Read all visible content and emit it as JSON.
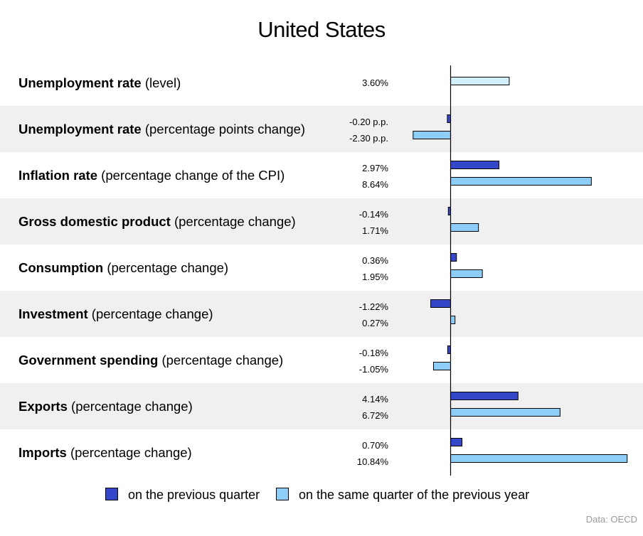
{
  "title": "United States",
  "source": "Data: OECD",
  "legend": {
    "quarter": "on the previous quarter",
    "year": "on the same quarter of the previous year"
  },
  "colors": {
    "quarter": "#3447c9",
    "year": "#8ecdf7",
    "level": "#d2eefb",
    "shade": "#f0f0f0"
  },
  "chart_data": {
    "type": "bar",
    "orientation": "horizontal",
    "title": "United States",
    "categories": [
      "Unemployment rate (level)",
      "Unemployment rate (percentage points change)",
      "Inflation rate (percentage change of the CPI)",
      "Gross domestic product (percentage change)",
      "Consumption (percentage change)",
      "Investment (percentage change)",
      "Government spending (percentage change)",
      "Exports (percentage change)",
      "Imports (percentage change)"
    ],
    "rows": [
      {
        "bold": "Unemployment rate",
        "rest": " (level)",
        "level": 3.6,
        "level_label": "3.60%"
      },
      {
        "bold": "Unemployment rate",
        "rest": " (percentage points change)",
        "quarter": -0.2,
        "year": -2.3,
        "quarter_label": "-0.20 p.p.",
        "year_label": "-2.30 p.p."
      },
      {
        "bold": "Inflation rate",
        "rest": " (percentage change of the CPI)",
        "quarter": 2.97,
        "year": 8.64,
        "quarter_label": "2.97%",
        "year_label": "8.64%"
      },
      {
        "bold": "Gross domestic product",
        "rest": " (percentage change)",
        "quarter": -0.14,
        "year": 1.71,
        "quarter_label": "-0.14%",
        "year_label": "1.71%"
      },
      {
        "bold": "Consumption",
        "rest": " (percentage change)",
        "quarter": 0.36,
        "year": 1.95,
        "quarter_label": "0.36%",
        "year_label": "1.95%"
      },
      {
        "bold": "Investment",
        "rest": " (percentage change)",
        "quarter": -1.22,
        "year": 0.27,
        "quarter_label": "-1.22%",
        "year_label": "0.27%"
      },
      {
        "bold": "Government spending",
        "rest": " (percentage change)",
        "quarter": -0.18,
        "year": -1.05,
        "quarter_label": "-0.18%",
        "year_label": "-1.05%"
      },
      {
        "bold": "Exports",
        "rest": " (percentage change)",
        "quarter": 4.14,
        "year": 6.72,
        "quarter_label": "4.14%",
        "year_label": "6.72%"
      },
      {
        "bold": "Imports",
        "rest": " (percentage change)",
        "quarter": 0.7,
        "year": 10.84,
        "quarter_label": "0.70%",
        "year_label": "10.84%"
      }
    ],
    "series": [
      {
        "name": "on the previous quarter",
        "values": [
          null,
          -0.2,
          2.97,
          -0.14,
          0.36,
          -1.22,
          -0.18,
          4.14,
          0.7
        ]
      },
      {
        "name": "on the same quarter of the previous year",
        "values": [
          null,
          -2.3,
          8.64,
          1.71,
          1.95,
          0.27,
          -1.05,
          6.72,
          10.84
        ]
      }
    ],
    "xlim": [
      -2.3,
      10.84
    ],
    "grid": false,
    "legend_position": "bottom"
  }
}
